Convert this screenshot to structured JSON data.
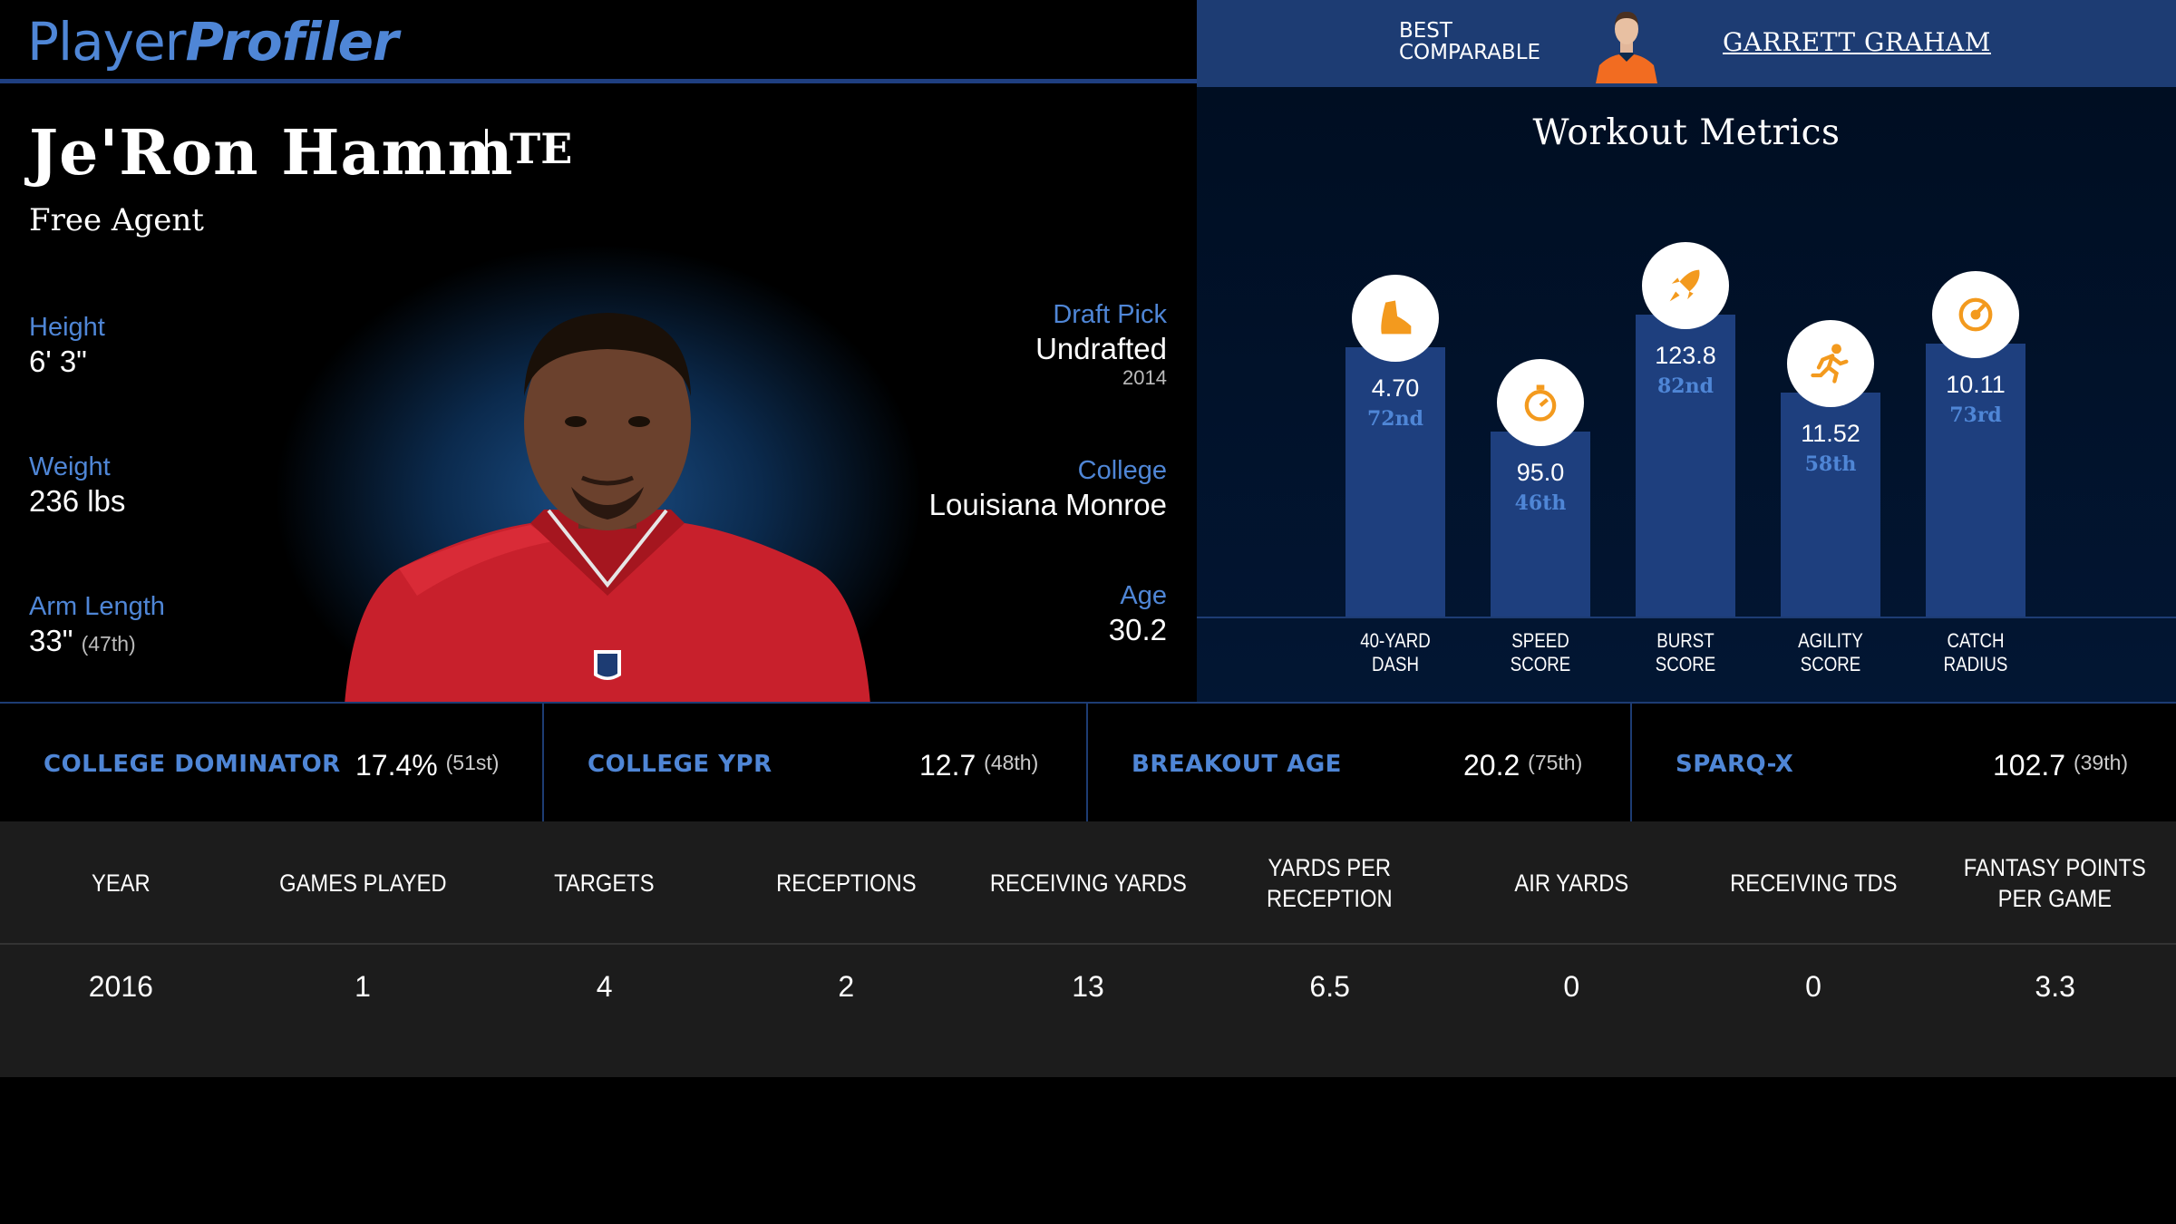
{
  "brand": {
    "part1": "Player",
    "part2": "Profiler"
  },
  "comparable": {
    "label_line1": "BEST",
    "label_line2": "COMPARABLE",
    "name": "GARRETT GRAHAM"
  },
  "player": {
    "name": "Je'Ron Hamm",
    "position": "TE",
    "team": "Free Agent",
    "height_label": "Height",
    "height": "6' 3\"",
    "weight_label": "Weight",
    "weight": "236 lbs",
    "arm_label": "Arm Length",
    "arm": "33\"",
    "arm_rank": "(47th)",
    "draft_label": "Draft Pick",
    "draft": "Undrafted",
    "draft_year": "2014",
    "college_label": "College",
    "college": "Louisiana Monroe",
    "age_label": "Age",
    "age": "30.2"
  },
  "workout": {
    "title": "Workout Metrics",
    "items": [
      {
        "label_1": "40-YARD",
        "label_2": "DASH",
        "value": "4.70",
        "rank": "72nd",
        "percentile": 72,
        "icon": "shoe-icon"
      },
      {
        "label_1": "SPEED",
        "label_2": "SCORE",
        "value": "95.0",
        "rank": "46th",
        "percentile": 46,
        "icon": "stopwatch-icon"
      },
      {
        "label_1": "BURST",
        "label_2": "SCORE",
        "value": "123.8",
        "rank": "82nd",
        "percentile": 82,
        "icon": "rocket-icon"
      },
      {
        "label_1": "AGILITY",
        "label_2": "SCORE",
        "value": "11.52",
        "rank": "58th",
        "percentile": 58,
        "icon": "runner-icon"
      },
      {
        "label_1": "CATCH",
        "label_2": "RADIUS",
        "value": "10.11",
        "rank": "73rd",
        "percentile": 73,
        "icon": "target-icon"
      }
    ]
  },
  "metrics": [
    {
      "label": "COLLEGE DOMINATOR",
      "value": "17.4%",
      "rank": "(51st)"
    },
    {
      "label": "COLLEGE YPR",
      "value": "12.7",
      "rank": "(48th)"
    },
    {
      "label": "BREAKOUT AGE",
      "value": "20.2",
      "rank": "(75th)"
    },
    {
      "label": "SPARQ-X",
      "value": "102.7",
      "rank": "(39th)"
    }
  ],
  "season_table": {
    "headers": [
      "YEAR",
      "GAMES PLAYED",
      "TARGETS",
      "RECEPTIONS",
      "RECEIVING YARDS",
      "YARDS PER RECEPTION",
      "AIR YARDS",
      "RECEIVING TDS",
      "FANTASY POINTS PER GAME"
    ],
    "rows": [
      [
        "2016",
        "1",
        "4",
        "2",
        "13",
        "6.5",
        "0",
        "0",
        "3.3"
      ]
    ]
  },
  "colors": {
    "accent": "#4f86d6",
    "panel_blue": "#1d3c73",
    "bar_blue": "#1e3f7e",
    "icon_orange": "#f39a1e"
  }
}
